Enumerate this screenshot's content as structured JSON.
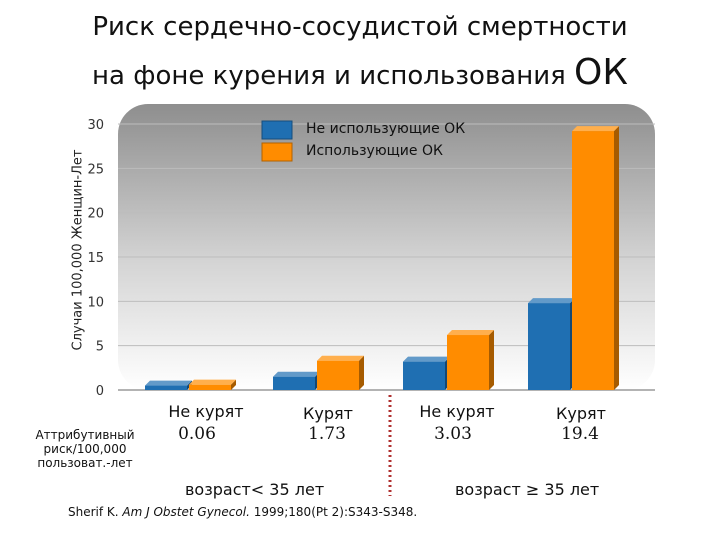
{
  "title": {
    "line1": "Риск сердечно-сосудистой смертности",
    "line2": "на фоне курения и использования",
    "line2_big": "ОК"
  },
  "chart_data": {
    "type": "bar",
    "ylabel": "Случаи 100,000 Женщин-Лет",
    "ylim": [
      0,
      30
    ],
    "yticks": [
      0,
      5,
      10,
      15,
      20,
      25,
      30
    ],
    "categories": [
      "Не курят",
      "Курят",
      "Не курят",
      "Курят"
    ],
    "series": [
      {
        "name": "Не использующие ОК",
        "color": "#1f6fb2",
        "values": [
          0.5,
          1.5,
          3.2,
          9.8
        ]
      },
      {
        "name": "Использующие ОК",
        "color": "#ff8c00",
        "values": [
          0.6,
          3.3,
          6.2,
          29.2
        ]
      }
    ],
    "legend_position": "top-center",
    "grid": true,
    "attributable_risk_label": "Аттрибутивный риск/100,000 пользоват.-лет",
    "attributable_risk": [
      "0.06",
      "1.73",
      "3.03",
      "19.4"
    ],
    "groups": [
      "возраст< 35 лет",
      "возраст ≥ 35 лет"
    ]
  },
  "citation": {
    "before": "Sherif K. ",
    "journal": "Am J Obstet Gynecol.",
    "after": " 1999;180(Pt 2):S343-S348."
  }
}
